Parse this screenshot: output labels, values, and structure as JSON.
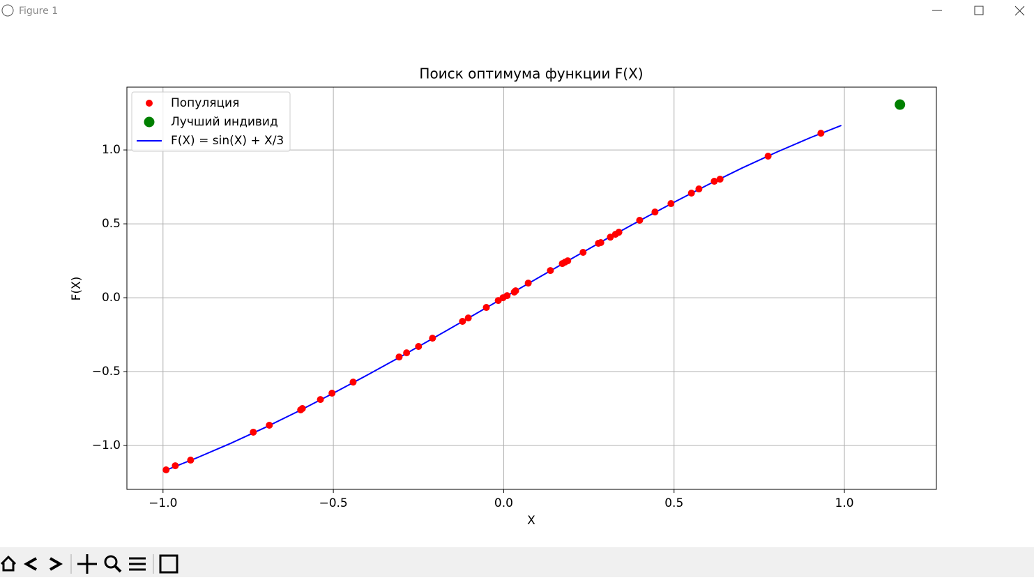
{
  "window": {
    "title": "Figure 1"
  },
  "chart_data": {
    "type": "scatter",
    "title": "Поиск оптимума функции F(X)",
    "x_label": "X",
    "y_label": "F(X)",
    "xlim": [
      -1.106,
      1.27
    ],
    "ylim": [
      -1.297,
      1.425
    ],
    "xticks": [
      {
        "value": -1.0,
        "label": "−1.0"
      },
      {
        "value": -0.5,
        "label": "−0.5"
      },
      {
        "value": 0.0,
        "label": "0.0"
      },
      {
        "value": 0.5,
        "label": "0.5"
      },
      {
        "value": 1.0,
        "label": "1.0"
      }
    ],
    "yticks": [
      {
        "value": -1.0,
        "label": "−1.0"
      },
      {
        "value": -0.5,
        "label": "−0.5"
      },
      {
        "value": 0.0,
        "label": "0.0"
      },
      {
        "value": 0.5,
        "label": "0.5"
      },
      {
        "value": 1.0,
        "label": "1.0"
      }
    ],
    "grid": true,
    "legend": "upper left",
    "series": [
      {
        "name": "Популяция",
        "color": "#ff0000",
        "marker": "dot",
        "x": [
          -0.991,
          -0.964,
          -0.919,
          -0.735,
          -0.688,
          -0.596,
          -0.591,
          -0.538,
          -0.504,
          -0.442,
          -0.307,
          -0.285,
          -0.25,
          -0.209,
          -0.121,
          -0.104,
          -0.051,
          -0.016,
          -0.002,
          0.01,
          0.031,
          0.035,
          0.072,
          0.137,
          0.172,
          0.18,
          0.188,
          0.233,
          0.278,
          0.285,
          0.313,
          0.328,
          0.338,
          0.399,
          0.444,
          0.491,
          0.551,
          0.573,
          0.618,
          0.635,
          0.776,
          0.931
        ],
        "values": [
          -1.165,
          -1.137,
          -1.099,
          -0.91,
          -0.863,
          -0.759,
          -0.75,
          -0.689,
          -0.646,
          -0.571,
          -0.401,
          -0.373,
          -0.33,
          -0.274,
          -0.16,
          -0.137,
          -0.066,
          -0.019,
          0.0,
          0.014,
          0.038,
          0.047,
          0.099,
          0.184,
          0.231,
          0.241,
          0.25,
          0.307,
          0.368,
          0.373,
          0.41,
          0.429,
          0.443,
          0.524,
          0.58,
          0.637,
          0.708,
          0.736,
          0.788,
          0.802,
          0.958,
          1.113
        ]
      },
      {
        "name": "Лучший индивид",
        "color": "#008000",
        "marker": "big-dot",
        "x": [
          1.163
        ],
        "values": [
          1.307
        ]
      },
      {
        "name": "F(X) = sin(X) + X/3",
        "color": "#0000ff",
        "marker": "line",
        "x": [
          -1.0,
          -0.9,
          -0.8,
          -0.7,
          -0.6,
          -0.5,
          -0.4,
          -0.3,
          -0.2,
          -0.1,
          0.0,
          0.1,
          0.2,
          0.3,
          0.4,
          0.5,
          0.6,
          0.7,
          0.8,
          0.9,
          0.991
        ],
        "values": [
          -1.175,
          -1.083,
          -0.984,
          -0.878,
          -0.765,
          -0.646,
          -0.523,
          -0.396,
          -0.265,
          -0.133,
          0.0,
          0.133,
          0.265,
          0.396,
          0.523,
          0.646,
          0.765,
          0.878,
          0.984,
          1.083,
          1.166
        ]
      }
    ]
  }
}
